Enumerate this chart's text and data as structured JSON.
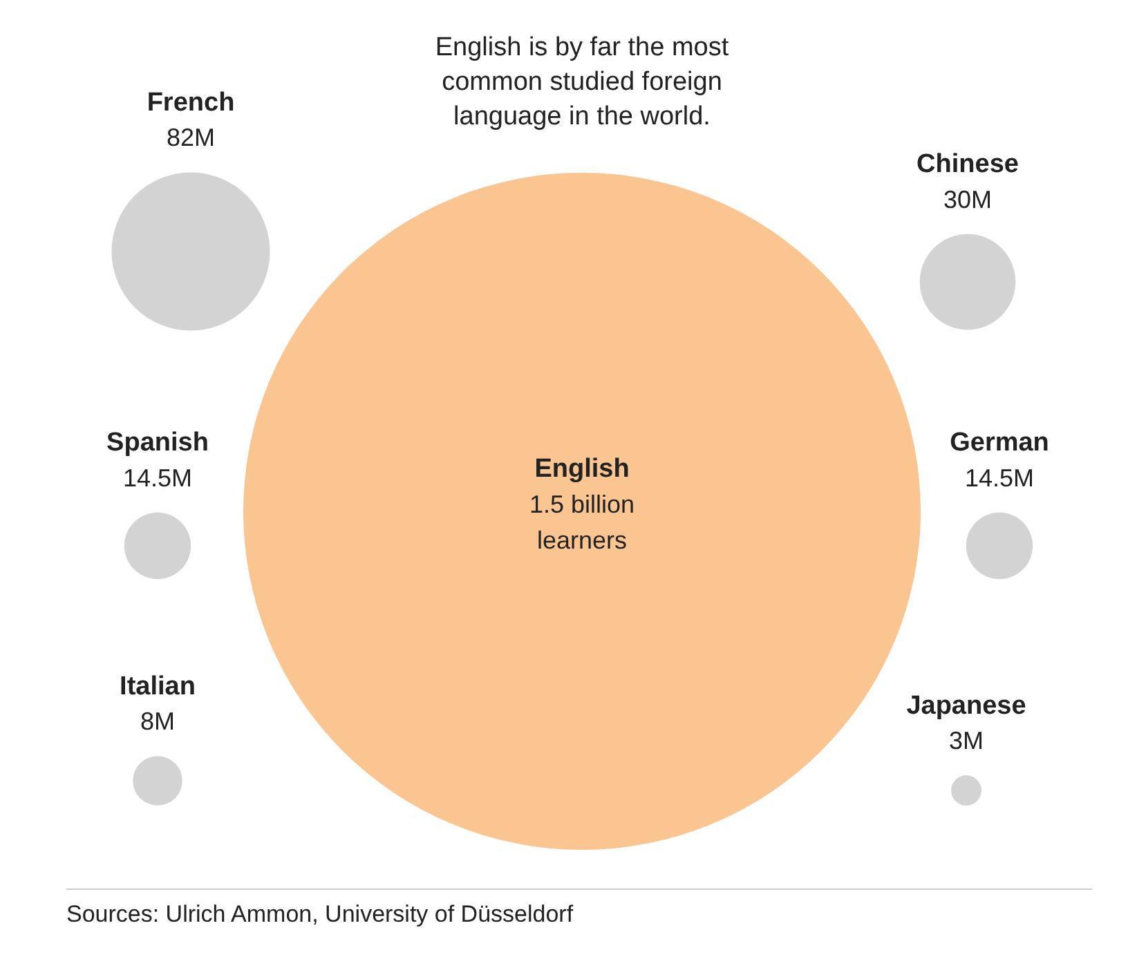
{
  "chart_data": {
    "type": "other",
    "title": "English is by far the most common studied foreign language in the world.",
    "categories": [
      "English",
      "French",
      "Chinese",
      "Spanish",
      "German",
      "Italian",
      "Japanese"
    ],
    "values": [
      1500000000,
      82000000,
      30000000,
      14500000,
      14500000,
      8000000,
      3000000
    ],
    "value_labels": [
      "1.5 billion learners",
      "82M",
      "30M",
      "14.5M",
      "14.5M",
      "8M",
      "3M"
    ],
    "colors": [
      "#fbc592",
      "#d3d3d3",
      "#d3d3d3",
      "#d3d3d3",
      "#d3d3d3",
      "#d3d3d3",
      "#d3d3d3"
    ],
    "annotations": [
      "Sources: Ulrich Ammon, University of Düsseldorf"
    ]
  }
}
